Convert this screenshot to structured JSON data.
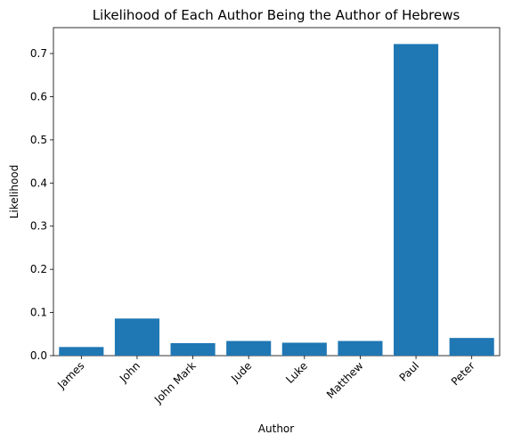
{
  "chart_data": {
    "type": "bar",
    "title": "Likelihood of Each Author Being the Author of Hebrews",
    "xlabel": "Author",
    "ylabel": "Likelihood",
    "categories": [
      "James",
      "John",
      "John Mark",
      "Jude",
      "Luke",
      "Matthew",
      "Paul",
      "Peter"
    ],
    "values": [
      0.02,
      0.086,
      0.029,
      0.034,
      0.03,
      0.034,
      0.722,
      0.041
    ],
    "ylim": [
      0,
      0.76
    ],
    "yticks": [
      0.0,
      0.1,
      0.2,
      0.3,
      0.4,
      0.5,
      0.6,
      0.7
    ],
    "ytick_labels": [
      "0.0",
      "0.1",
      "0.2",
      "0.3",
      "0.4",
      "0.5",
      "0.6",
      "0.7"
    ],
    "grid": false,
    "bar_color": "#1f77b4",
    "xtick_rotation_deg": 45
  }
}
